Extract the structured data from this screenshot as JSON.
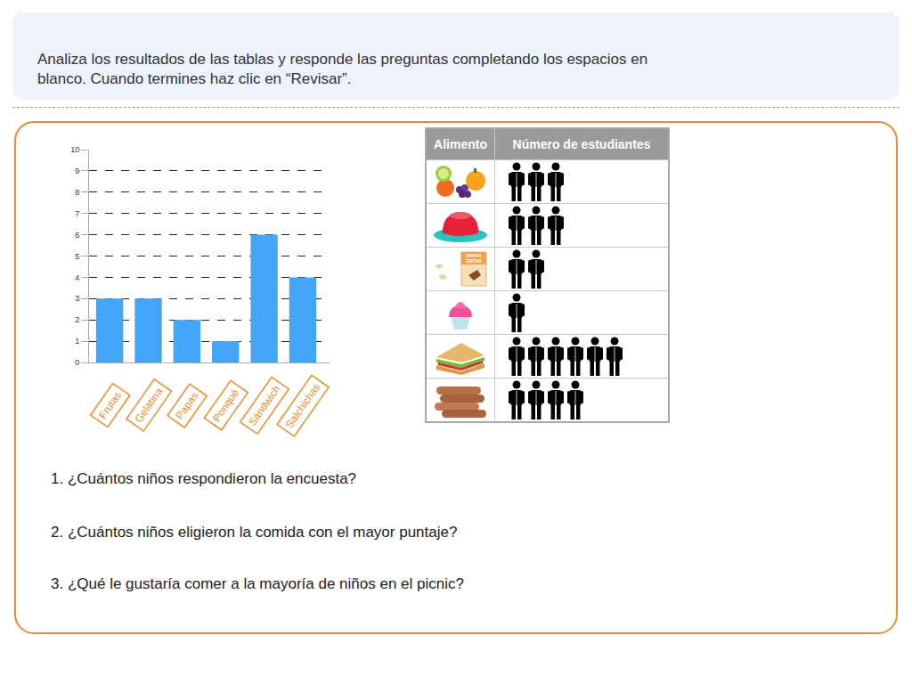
{
  "instructions": "Analiza los resultados de las tablas y responde las preguntas completando los espacios en blanco. Cuando termines haz clic en “Revisar”.",
  "chart_data": {
    "type": "bar",
    "categories": [
      "Frutas",
      "Gelatina",
      "Papas",
      "Ponqué",
      "Sándwich",
      "Salchichas"
    ],
    "values": [
      3,
      3,
      2,
      1,
      6,
      4
    ],
    "color": "#42a5f5",
    "ylim": [
      0,
      10
    ],
    "yticks": [
      0,
      1,
      2,
      3,
      4,
      5,
      6,
      7,
      8,
      9,
      10
    ],
    "grid": true
  },
  "table": {
    "header": [
      "Alimento",
      "Número de estudiantes"
    ],
    "rows": [
      {
        "count": 3
      },
      {
        "count": 3
      },
      {
        "count": 2,
        "icon_text": [
          "PAPAS",
          "FRITAS"
        ]
      },
      {
        "count": 1
      },
      {
        "count": 6
      },
      {
        "count": 4
      }
    ]
  },
  "questions": [
    "1. ¿Cuántos niños respondieron la encuesta?",
    "2. ¿Cuántos niños eligieron la comida con el mayor puntaje?",
    "3. ¿Qué le gustaría comer a la mayoría de niños en el picnic?"
  ]
}
